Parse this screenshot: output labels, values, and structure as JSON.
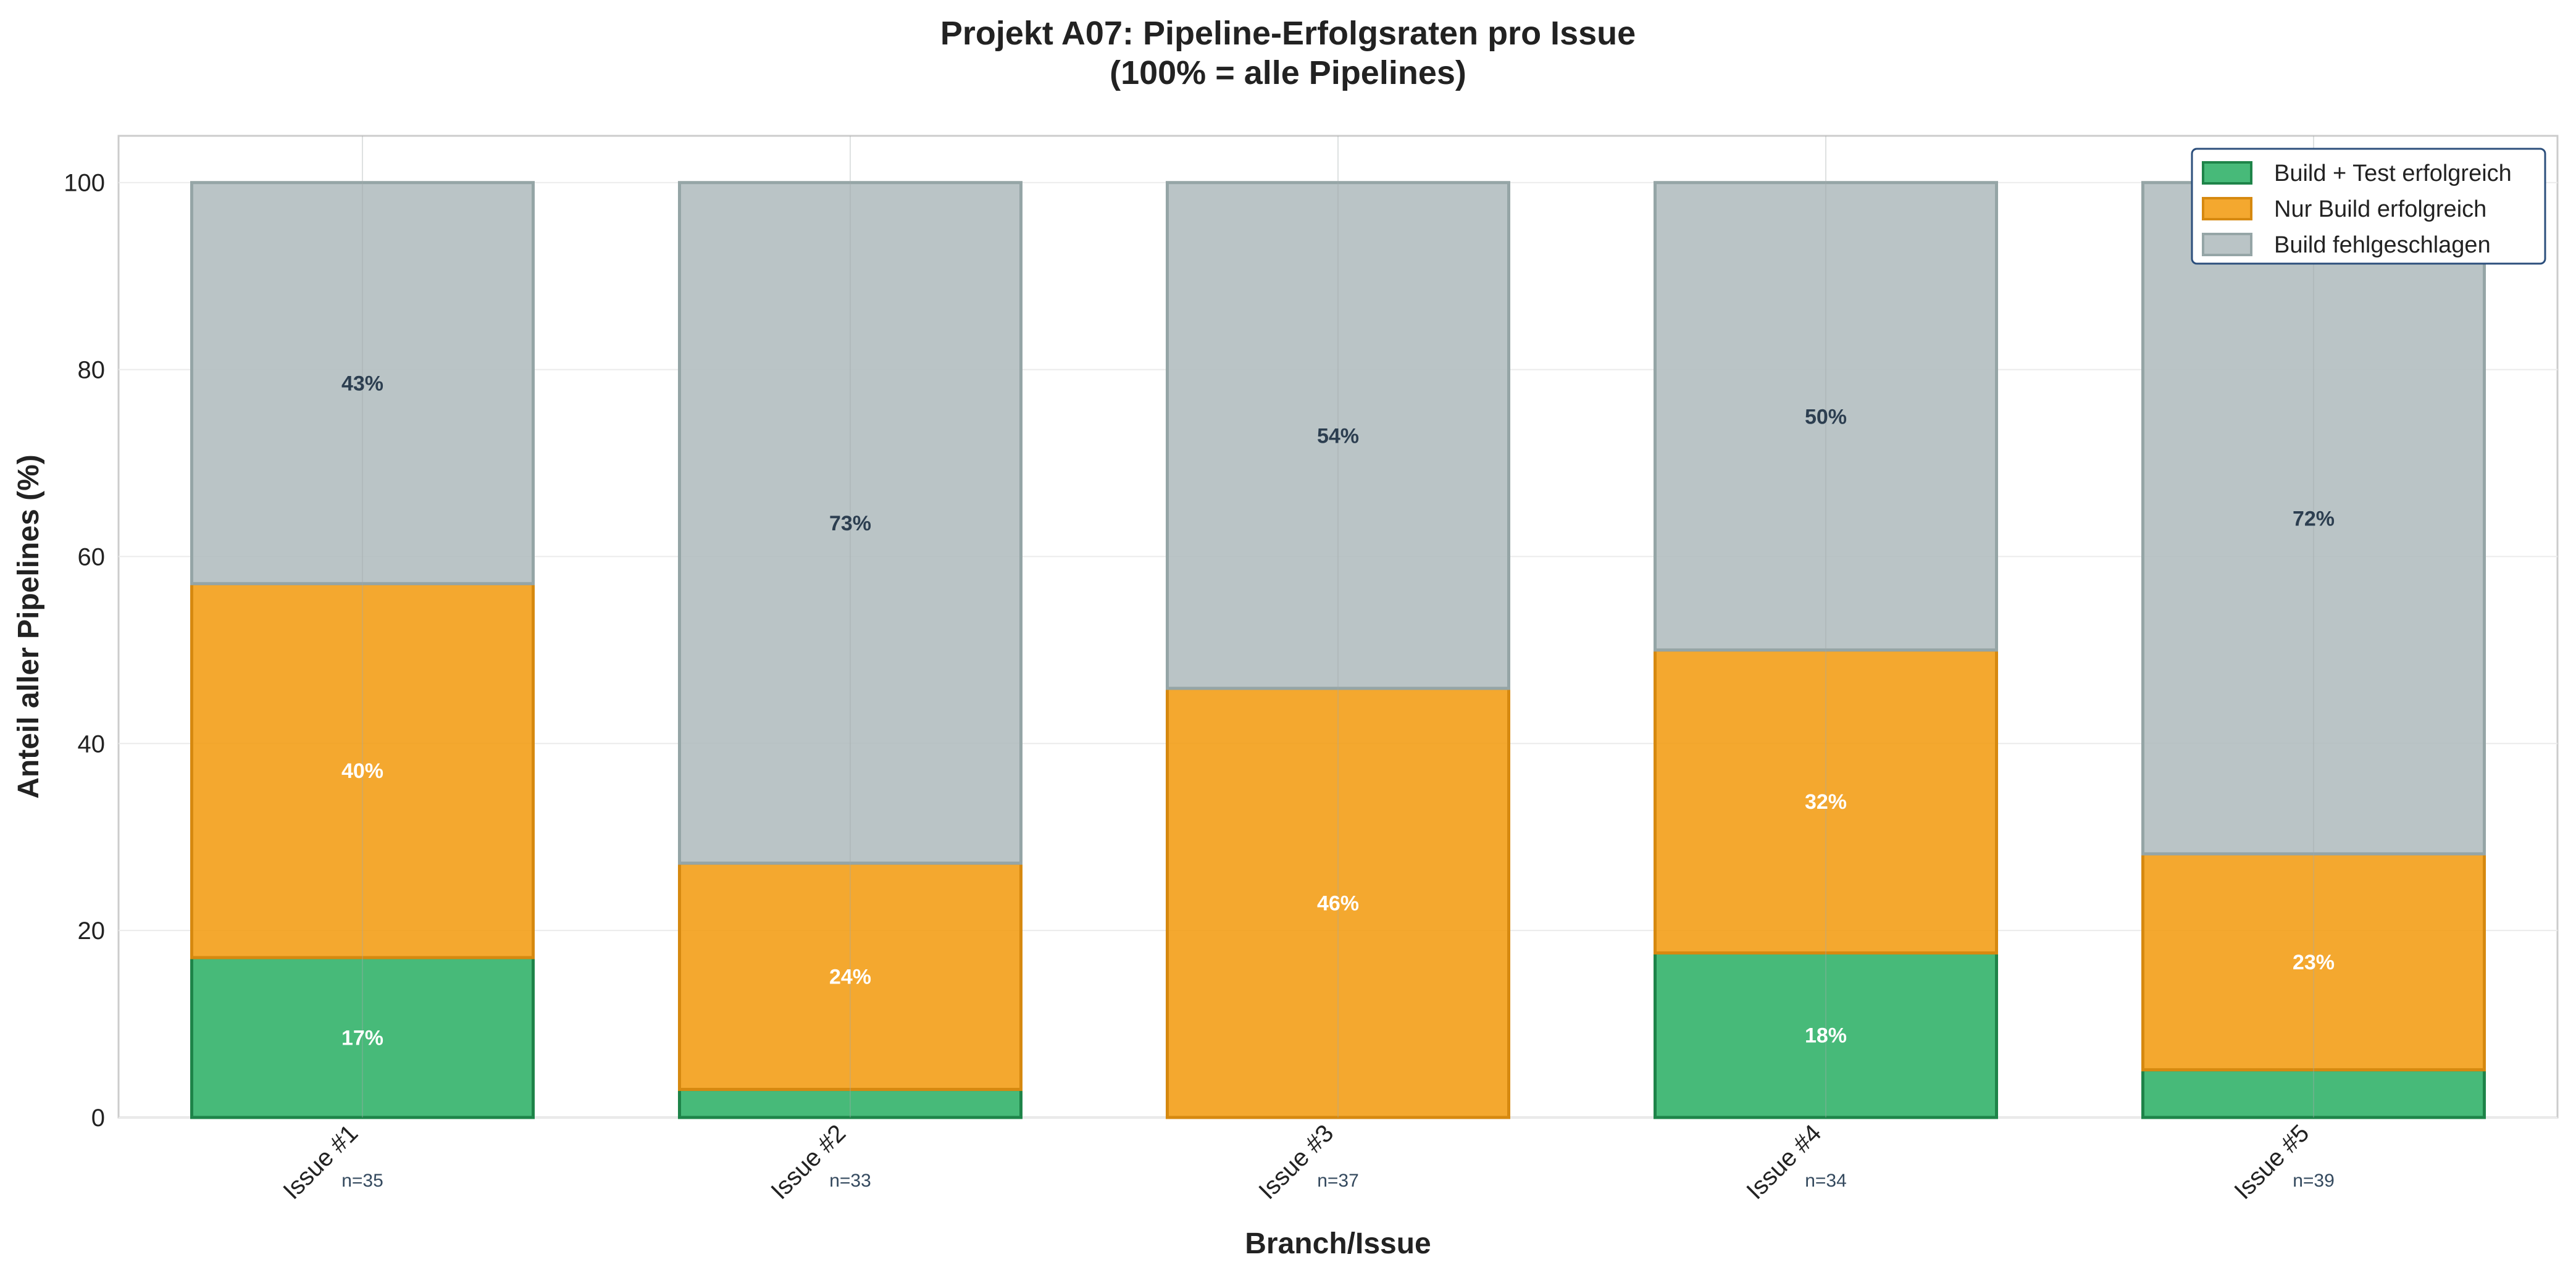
{
  "chart_data": {
    "type": "bar",
    "stacked": true,
    "title": "Projekt A07: Pipeline-Erfolgsraten pro Issue",
    "subtitle": "(100% = alle Pipelines)",
    "xlabel": "Branch/Issue",
    "ylabel": "Anteil aller Pipelines (%)",
    "ylim": [
      0,
      105
    ],
    "yticks": [
      0,
      20,
      40,
      60,
      80,
      100
    ],
    "grid": true,
    "legend_position": "top-right",
    "categories": [
      "Issue #1",
      "Issue #2",
      "Issue #3",
      "Issue #4",
      "Issue #5"
    ],
    "sample_sizes": [
      "n=35",
      "n=33",
      "n=37",
      "n=34",
      "n=39"
    ],
    "series": [
      {
        "name": "Build + Test erfolgreich",
        "color": "#2eb067",
        "edge_color": "#1e8449",
        "label_color": "#ffffff",
        "values": [
          17.1,
          3.0,
          0,
          17.6,
          5.1
        ],
        "labels": [
          "17%",
          "",
          "",
          "18%",
          ""
        ]
      },
      {
        "name": "Nur Build erfolgreich",
        "color": "#f39c12",
        "edge_color": "#d68910",
        "label_color": "#ffffff",
        "values": [
          40.0,
          24.2,
          45.9,
          32.4,
          23.1
        ],
        "labels": [
          "40%",
          "24%",
          "46%",
          "32%",
          "23%"
        ]
      },
      {
        "name": "Build fehlgeschlagen",
        "color": "#b1bcbe",
        "edge_color": "#95a5a6",
        "label_color": "#2c3e50",
        "values": [
          42.9,
          72.8,
          54.1,
          50.0,
          71.8
        ],
        "labels": [
          "43%",
          "73%",
          "54%",
          "50%",
          "72%"
        ]
      }
    ]
  }
}
